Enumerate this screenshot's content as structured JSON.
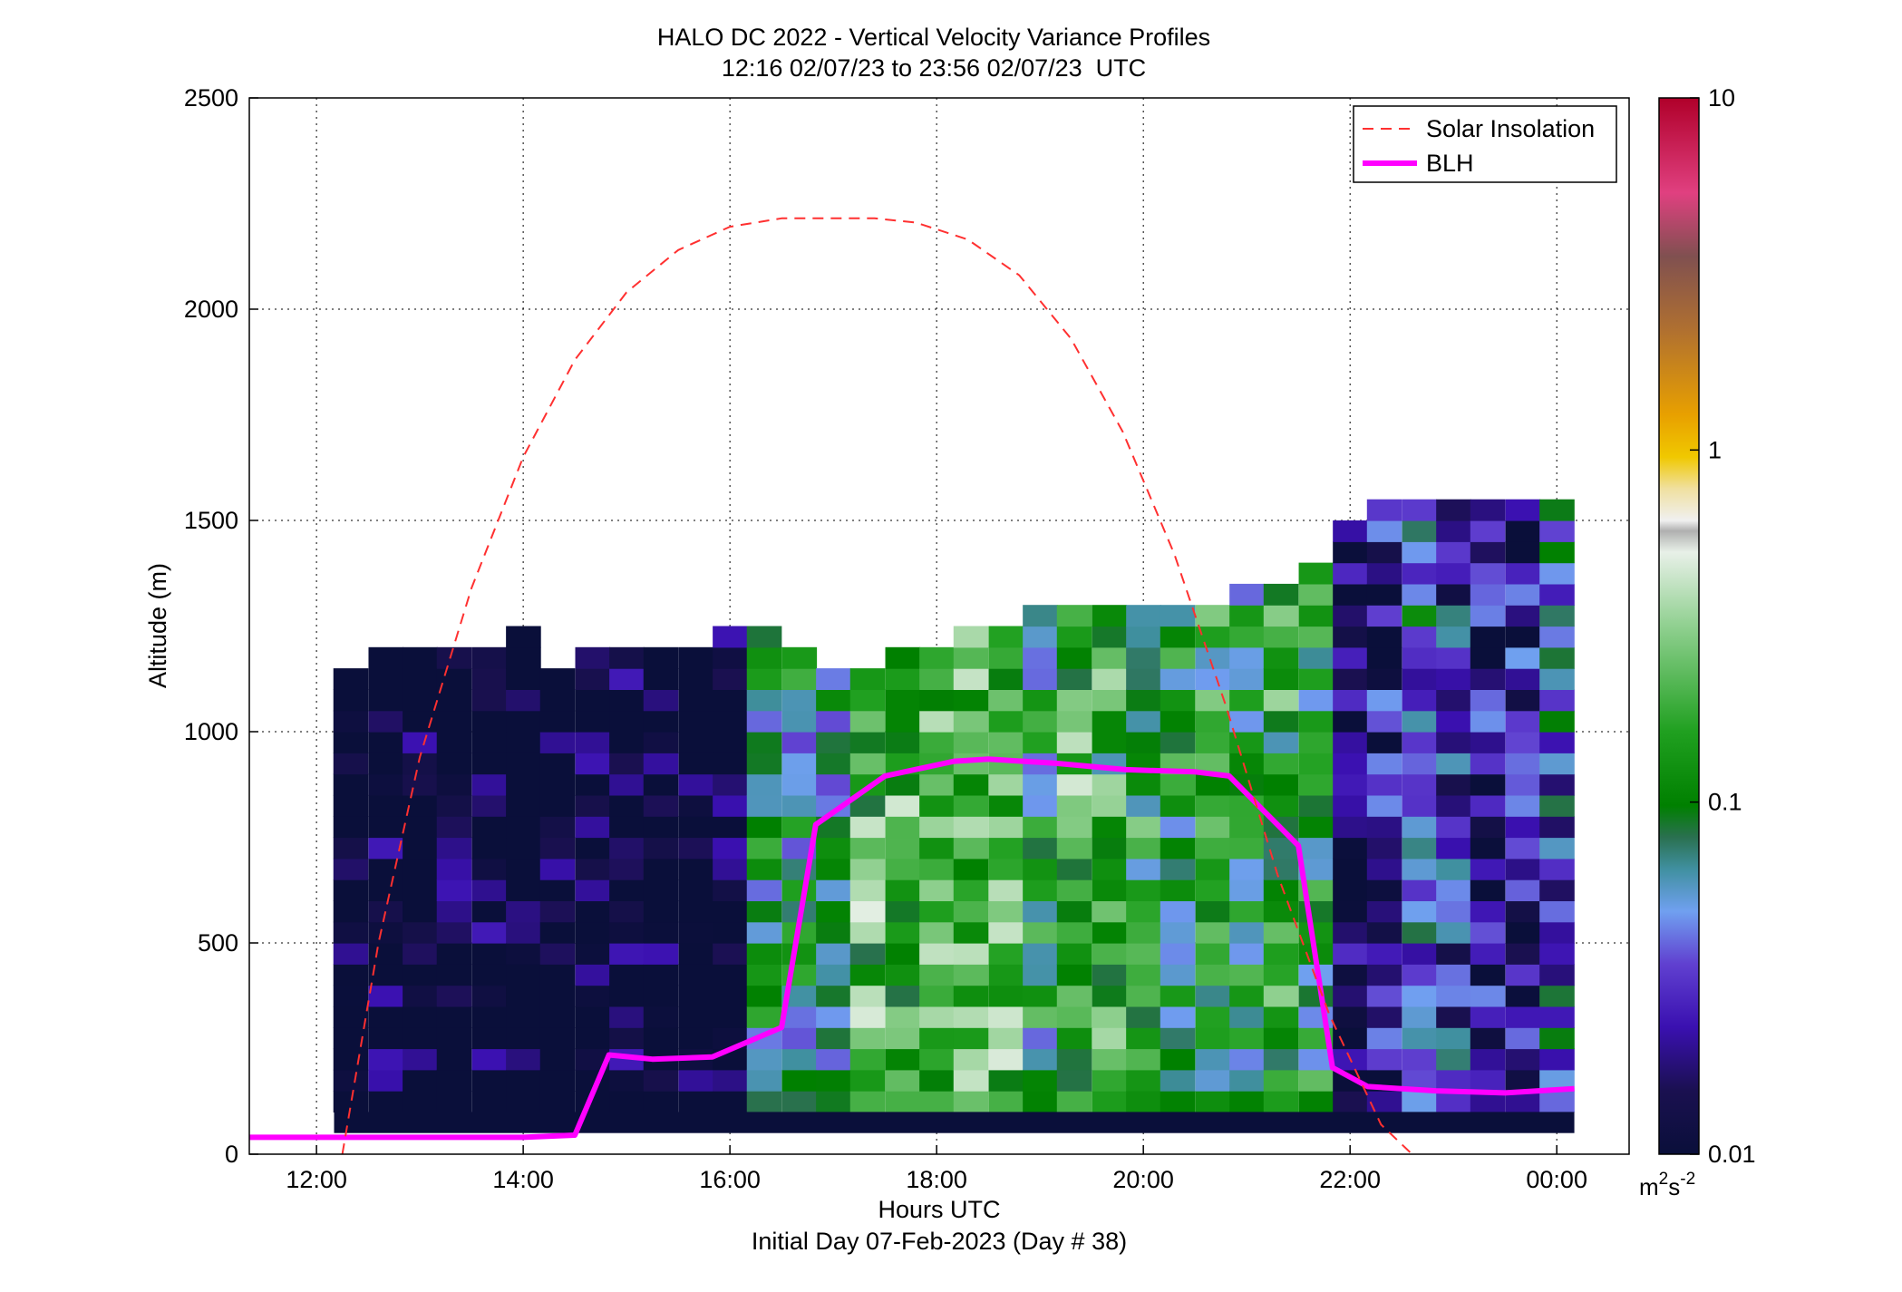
{
  "chart_data": {
    "type": "heatmap",
    "title": "HALO DC 2022 - Vertical Velocity Variance Profiles",
    "subtitle": "12:16 02/07/23 to 23:56 02/07/23  UTC",
    "xlabel": "Hours UTC",
    "xlabel2": "Initial Day 07-Feb-2023 (Day # 38)",
    "ylabel": "Altitude (m)",
    "x_unit": "hours since 00:00 UTC 07-Feb-2023",
    "xlim": [
      11.35,
      24.7
    ],
    "ylim": [
      0,
      2500
    ],
    "x_ticks": [
      {
        "value": 12,
        "label": "12:00"
      },
      {
        "value": 14,
        "label": "14:00"
      },
      {
        "value": 16,
        "label": "16:00"
      },
      {
        "value": 18,
        "label": "18:00"
      },
      {
        "value": 20,
        "label": "20:00"
      },
      {
        "value": 22,
        "label": "22:00"
      },
      {
        "value": 24,
        "label": "00:00"
      }
    ],
    "y_ticks": [
      {
        "value": 0,
        "label": "0"
      },
      {
        "value": 500,
        "label": "500"
      },
      {
        "value": 1000,
        "label": "1000"
      },
      {
        "value": 1500,
        "label": "1500"
      },
      {
        "value": 2000,
        "label": "2000"
      },
      {
        "value": 2500,
        "label": "2500"
      }
    ],
    "grid": true,
    "legend_position": "top-right",
    "legend": [
      {
        "label": "Solar Insolation",
        "color": "#ff3030",
        "style": "dashed"
      },
      {
        "label": "BLH",
        "color": "#ff00ff",
        "style": "solid"
      }
    ],
    "colorbar": {
      "scale": "log",
      "range": [
        0.01,
        10
      ],
      "ticks": [
        {
          "value": 10,
          "label": "10"
        },
        {
          "value": 1,
          "label": "1"
        },
        {
          "value": 0.1,
          "label": "0.1"
        },
        {
          "value": 0.01,
          "label": "0.01"
        }
      ],
      "unit_base": "m",
      "unit_sup1": "2",
      "unit_mid": "s",
      "unit_sup2": "-2"
    },
    "series": [
      {
        "name": "BLH",
        "color": "#ff00ff",
        "x": [
          11.35,
          14.0,
          14.5,
          14.83,
          15.25,
          15.83,
          16.5,
          16.83,
          17.5,
          18.17,
          18.5,
          19.17,
          19.83,
          20.5,
          20.83,
          21.5,
          21.83,
          22.17,
          22.83,
          23.5,
          24.17
        ],
        "y": [
          40,
          40,
          45,
          235,
          225,
          230,
          300,
          780,
          895,
          930,
          935,
          925,
          910,
          905,
          895,
          730,
          205,
          160,
          150,
          145,
          155
        ]
      },
      {
        "name": "Solar Insolation",
        "color": "#ff3030",
        "x": [
          12.25,
          12.6,
          13.0,
          13.5,
          14.0,
          14.5,
          15.0,
          15.5,
          16.0,
          16.5,
          17.0,
          17.4,
          17.8,
          18.3,
          18.8,
          19.3,
          19.8,
          20.3,
          20.8,
          21.3,
          21.8,
          22.3,
          22.6
        ],
        "y": [
          0,
          500,
          940,
          1340,
          1650,
          1880,
          2040,
          2140,
          2195,
          2215,
          2215,
          2215,
          2205,
          2165,
          2080,
          1930,
          1710,
          1420,
          1060,
          660,
          330,
          70,
          0
        ]
      }
    ],
    "heatmap_bins": {
      "x_step_hours": 0.3333,
      "y_step_m": 50,
      "cells": [
        [
          12.33,
          100,
          1150,
          0.01
        ],
        [
          12.67,
          100,
          1200,
          0.01
        ],
        [
          13.0,
          100,
          1200,
          0.01
        ],
        [
          13.33,
          100,
          1200,
          0.01
        ],
        [
          13.67,
          100,
          1200,
          0.01
        ],
        [
          14.0,
          100,
          1250,
          0.01
        ],
        [
          14.33,
          100,
          1150,
          0.01
        ],
        [
          14.67,
          100,
          1200,
          0.01
        ],
        [
          15.0,
          100,
          1200,
          0.01
        ],
        [
          15.33,
          100,
          1200,
          0.01
        ],
        [
          15.67,
          100,
          1200,
          0.01
        ],
        [
          16.0,
          100,
          1250,
          0.01
        ],
        [
          16.33,
          100,
          1250,
          0.08
        ],
        [
          16.67,
          100,
          1200,
          0.08
        ],
        [
          17.0,
          100,
          1150,
          0.09
        ],
        [
          17.33,
          100,
          1150,
          0.2
        ],
        [
          17.67,
          100,
          1200,
          0.2
        ],
        [
          18.0,
          100,
          1200,
          0.2
        ],
        [
          18.33,
          100,
          1250,
          0.25
        ],
        [
          18.67,
          100,
          1250,
          0.2
        ],
        [
          19.0,
          100,
          1300,
          0.1
        ],
        [
          19.33,
          100,
          1300,
          0.2
        ],
        [
          19.67,
          100,
          1300,
          0.15
        ],
        [
          20.0,
          100,
          1300,
          0.12
        ],
        [
          20.33,
          100,
          1300,
          0.1
        ],
        [
          20.67,
          100,
          1300,
          0.12
        ],
        [
          21.0,
          100,
          1350,
          0.1
        ],
        [
          21.33,
          100,
          1350,
          0.15
        ],
        [
          21.67,
          100,
          1400,
          0.1
        ],
        [
          22.0,
          100,
          1500,
          0.015
        ],
        [
          22.33,
          100,
          1550,
          0.02
        ],
        [
          22.67,
          100,
          1550,
          0.05
        ],
        [
          23.0,
          100,
          1550,
          0.03
        ],
        [
          23.33,
          100,
          1550,
          0.02
        ],
        [
          23.67,
          100,
          1550,
          0.02
        ],
        [
          24.0,
          100,
          1550,
          0.04
        ]
      ]
    }
  }
}
